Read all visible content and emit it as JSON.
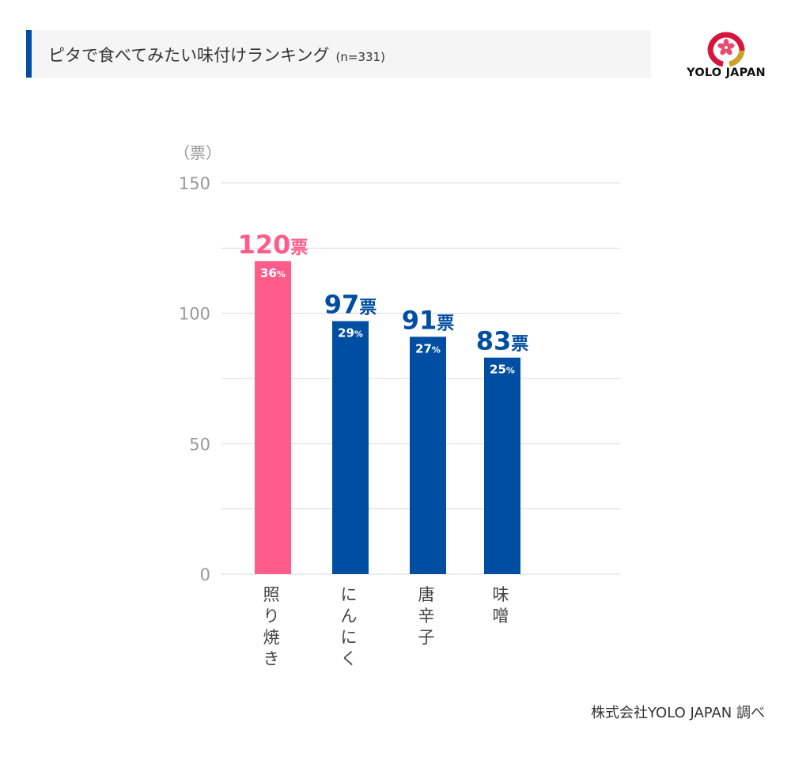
{
  "header": {
    "title": "ピタで食べてみたい味付けランキング",
    "sample": "(n=331)"
  },
  "logo": {
    "text": "YOLO JAPAN",
    "icon": "sakura-logo-icon"
  },
  "source": "株式会社YOLO JAPAN 調べ",
  "colors": {
    "accent": "#004ea2",
    "highlight": "#ff5c8a",
    "bar": "#004ea2",
    "grid": "#d9d9d9",
    "axis_text": "#999999"
  },
  "chart_data": {
    "type": "bar",
    "unit_label": "（票）",
    "categories": [
      "照り焼き",
      "にんにく",
      "唐辛子",
      "味噌"
    ],
    "values": [
      120,
      97,
      91,
      83
    ],
    "value_labels": [
      "120",
      "97",
      "91",
      "83"
    ],
    "value_suffix": "票",
    "percents": [
      "36",
      "29",
      "27",
      "25"
    ],
    "percent_suffix": "%",
    "ylim": [
      0,
      150
    ],
    "yticks": [
      "0",
      "50",
      "100",
      "150"
    ],
    "grid": true,
    "highlight_index": 0
  }
}
